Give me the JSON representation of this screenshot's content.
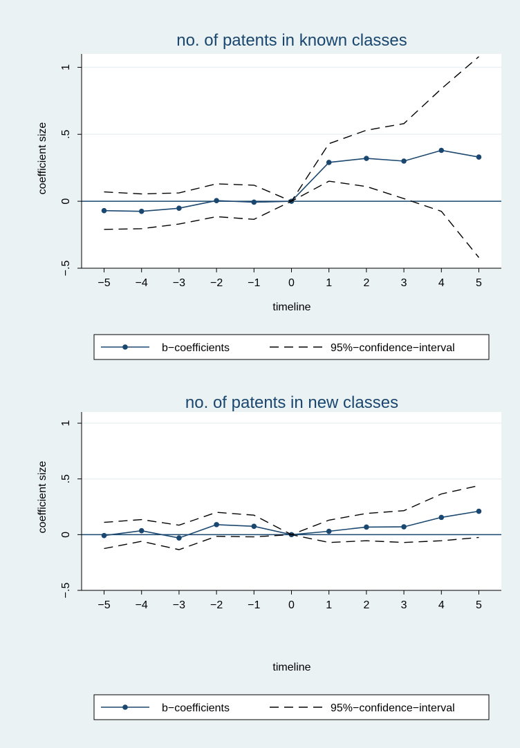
{
  "colors": {
    "background": "#eaf2f3",
    "plot_area": "#ffffff",
    "title": "#1a476f",
    "series_line": "#1a476f",
    "ci_line": "#000000",
    "zero_line": "#1a476f",
    "grid": "#eaf2f3"
  },
  "chart_data": [
    {
      "type": "line",
      "title": "no. of patents in known classes",
      "xlabel": "timeline",
      "ylabel": "coefficient size",
      "xlim": [
        -5.6,
        5.6
      ],
      "ylim": [
        -0.5,
        1.1
      ],
      "x_ticks": [
        -5,
        -4,
        -3,
        -2,
        -1,
        0,
        1,
        2,
        3,
        4,
        5
      ],
      "x_tick_labels": [
        "−5",
        "−4",
        "−3",
        "−2",
        "−1",
        "0",
        "1",
        "2",
        "3",
        "4",
        "5"
      ],
      "y_ticks": [
        -0.5,
        0,
        0.5,
        1
      ],
      "y_tick_labels": [
        "−.5",
        "0",
        ".5",
        "1"
      ],
      "grid": true,
      "reference_line_y": 0,
      "legend_position": "bottom",
      "x": [
        -5,
        -4,
        -3,
        -2,
        -1,
        0,
        1,
        2,
        3,
        4,
        5
      ],
      "series": [
        {
          "name": "b−coefficients",
          "style": "solid-markers",
          "values": [
            -0.07,
            -0.075,
            -0.052,
            0.005,
            -0.007,
            0,
            0.29,
            0.32,
            0.3,
            0.38,
            0.33
          ]
        },
        {
          "name": "95%−confidence−interval",
          "style": "dashed",
          "role": "upper",
          "values": [
            0.07,
            0.055,
            0.062,
            0.13,
            0.12,
            0,
            0.43,
            0.53,
            0.58,
            0.84,
            1.08
          ]
        },
        {
          "style": "dashed",
          "role": "lower",
          "values": [
            -0.21,
            -0.205,
            -0.17,
            -0.115,
            -0.135,
            0,
            0.15,
            0.11,
            0.02,
            -0.075,
            -0.42
          ]
        }
      ]
    },
    {
      "type": "line",
      "title": "no. of patents in new classes",
      "xlabel": "timeline",
      "ylabel": "coefficient size",
      "xlim": [
        -5.6,
        5.6
      ],
      "ylim": [
        -0.5,
        1.1
      ],
      "x_ticks": [
        -5,
        -4,
        -3,
        -2,
        -1,
        0,
        1,
        2,
        3,
        4,
        5
      ],
      "x_tick_labels": [
        "−5",
        "−4",
        "−3",
        "−2",
        "−1",
        "0",
        "1",
        "2",
        "3",
        "4",
        "5"
      ],
      "y_ticks": [
        -0.5,
        0,
        0.5,
        1
      ],
      "y_tick_labels": [
        "−.5",
        "0",
        ".5",
        "1"
      ],
      "grid": true,
      "reference_line_y": 0,
      "legend_position": "bottom",
      "x": [
        -5,
        -4,
        -3,
        -2,
        -1,
        0,
        1,
        2,
        3,
        4,
        5
      ],
      "series": [
        {
          "name": "b−coefficients",
          "style": "solid-markers",
          "values": [
            -0.008,
            0.035,
            -0.03,
            0.09,
            0.075,
            0,
            0.03,
            0.068,
            0.07,
            0.155,
            0.21
          ]
        },
        {
          "name": "95%−confidence−interval",
          "style": "dashed",
          "role": "upper",
          "values": [
            0.11,
            0.135,
            0.085,
            0.2,
            0.175,
            0,
            0.13,
            0.19,
            0.215,
            0.365,
            0.44
          ]
        },
        {
          "style": "dashed",
          "role": "lower",
          "values": [
            -0.125,
            -0.06,
            -0.135,
            -0.015,
            -0.02,
            0,
            -0.07,
            -0.055,
            -0.07,
            -0.055,
            -0.025
          ]
        }
      ]
    }
  ]
}
